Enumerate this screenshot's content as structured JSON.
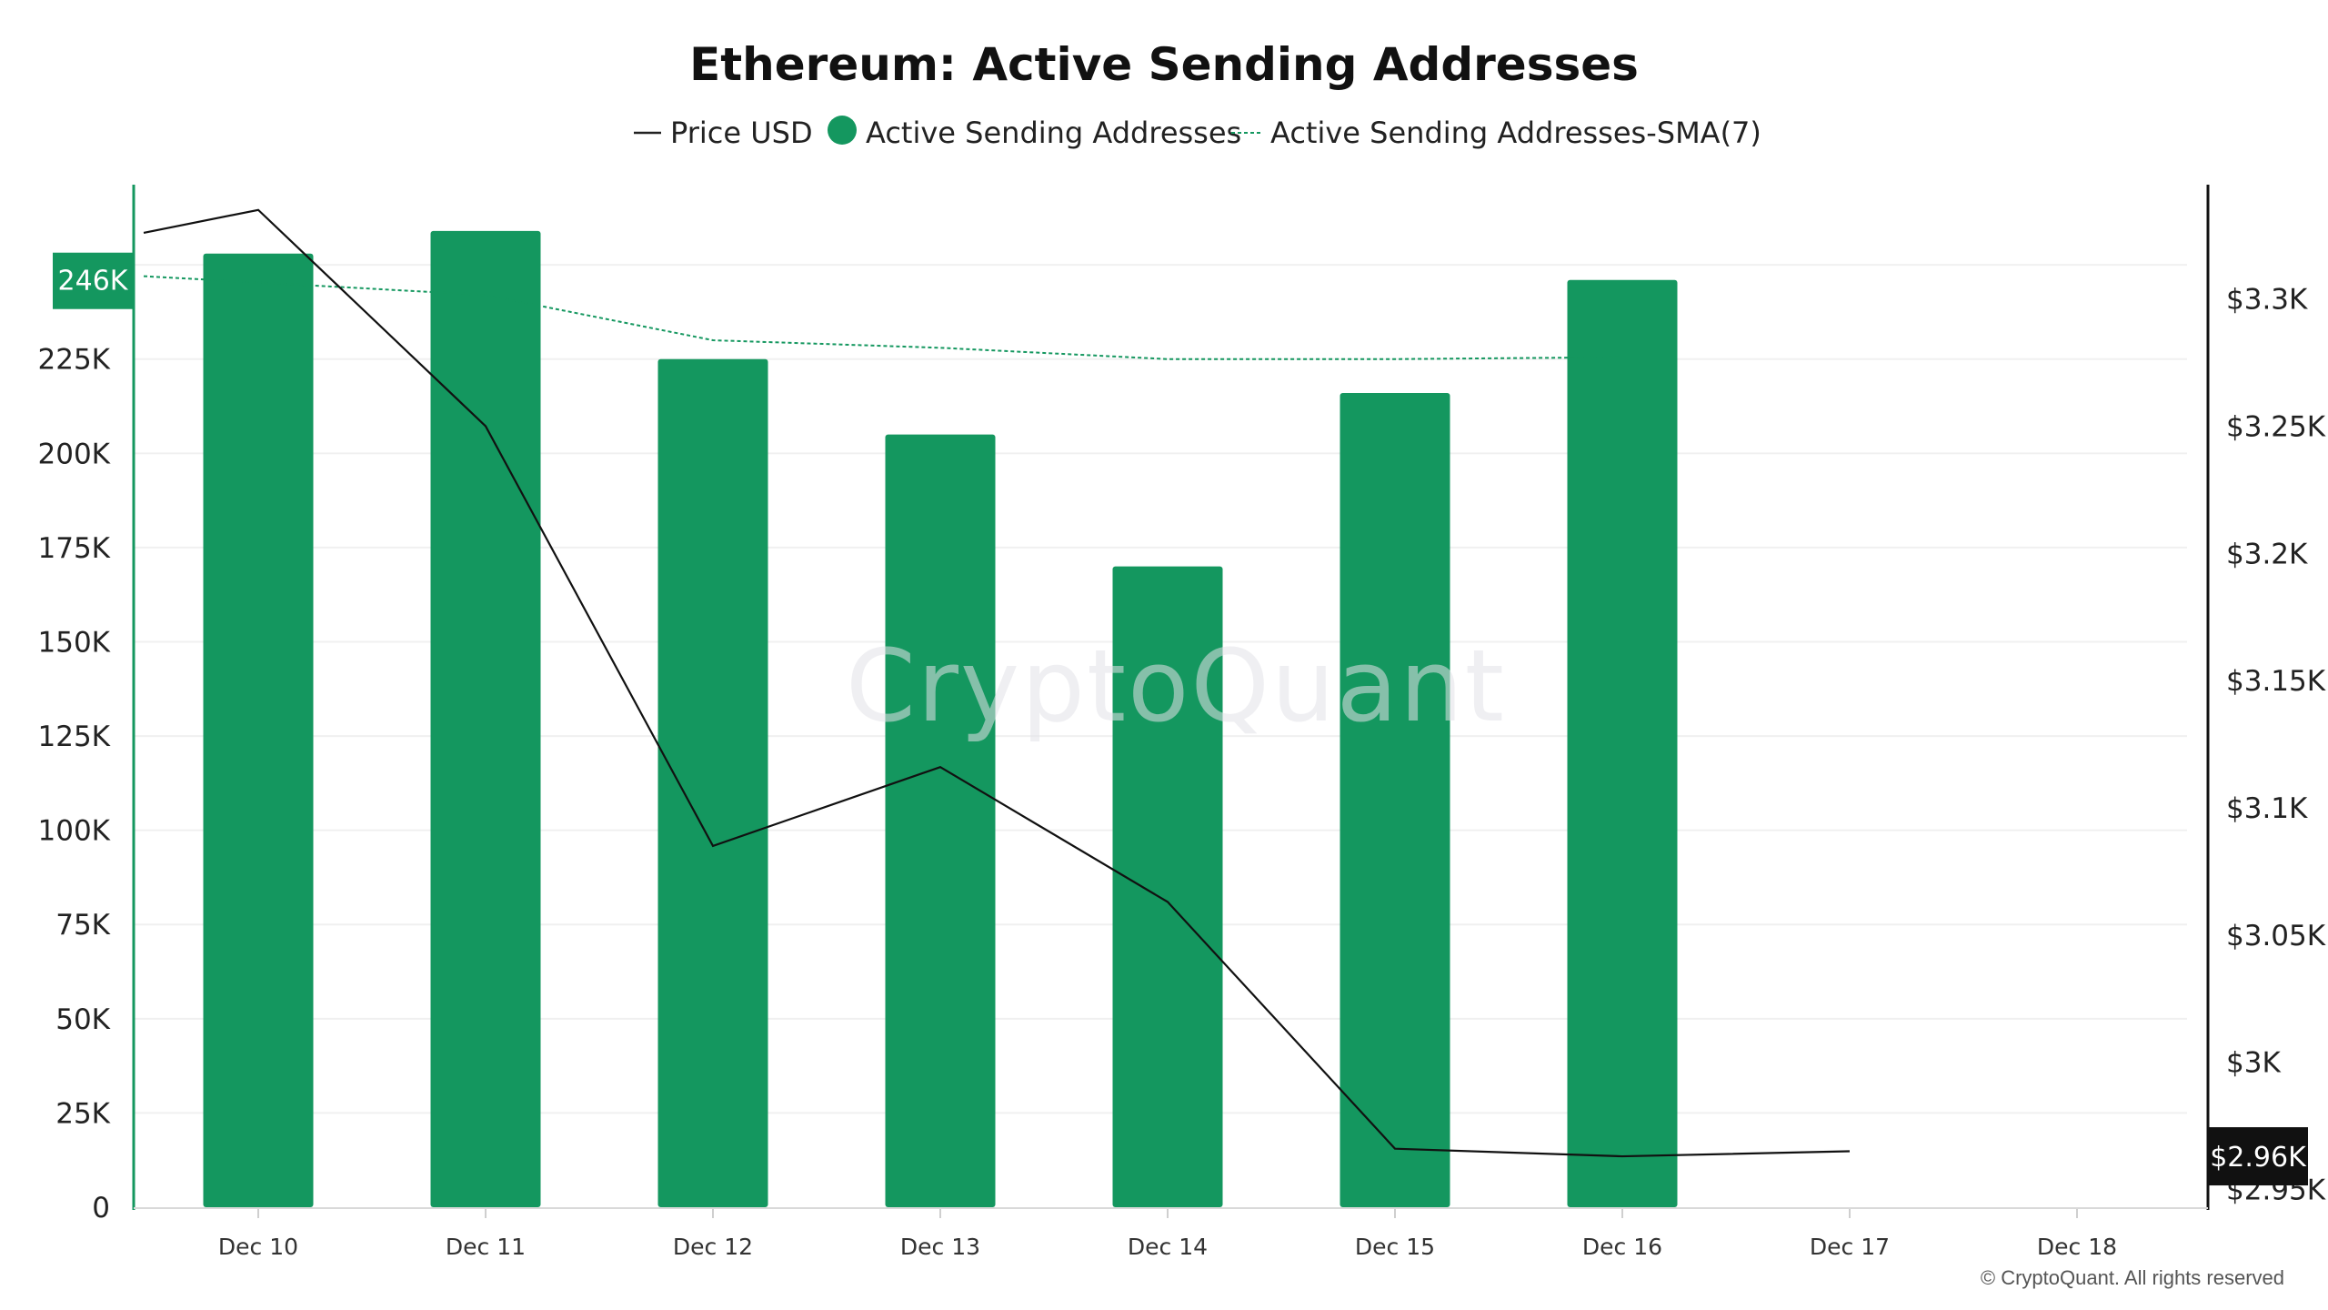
{
  "chart_data": {
    "type": "bar",
    "title": "Ethereum: Active Sending Addresses",
    "legend": {
      "placement": "top-center",
      "items": [
        {
          "label": "Price USD",
          "style": "line"
        },
        {
          "label": "Active Sending Addresses",
          "style": "dot"
        },
        {
          "label": "Active Sending Addresses-SMA(7)",
          "style": "dotted-line"
        }
      ]
    },
    "categories": [
      "Dec 10",
      "Dec 11",
      "Dec 12",
      "Dec 13",
      "Dec 14",
      "Dec 15",
      "Dec 16",
      "Dec 17",
      "Dec 18"
    ],
    "series": [
      {
        "name": "Active Sending Addresses",
        "type": "bar",
        "axis": "left",
        "color": "#14975f",
        "values": [
          253000,
          259000,
          225000,
          205000,
          170000,
          216000,
          246000,
          null,
          null
        ]
      },
      {
        "name": "Active Sending Addresses-SMA(7)",
        "type": "line",
        "style": "dotted",
        "axis": "left",
        "color": "#14975f",
        "values": [
          247000,
          242000,
          230000,
          228000,
          225000,
          225000,
          225500,
          null,
          null
        ]
      },
      {
        "name": "Price USD",
        "type": "line",
        "axis": "right",
        "color": "#111111",
        "values": [
          3335,
          3250,
          3085,
          3116,
          3063,
          2966,
          2963,
          2965,
          null
        ]
      }
    ],
    "left_axis": {
      "ticks": [
        "0",
        "25K",
        "50K",
        "75K",
        "100K",
        "125K",
        "150K",
        "175K",
        "200K",
        "225K"
      ],
      "tick_values": [
        0,
        25000,
        50000,
        75000,
        100000,
        125000,
        150000,
        175000,
        200000,
        225000
      ],
      "ylim": [
        0,
        272000
      ],
      "highlight_label": "246K",
      "highlight_value": 246000
    },
    "right_axis": {
      "ticks": [
        "$2.95K",
        "$3K",
        "$3.05K",
        "$3.1K",
        "$3.15K",
        "$3.2K",
        "$3.25K",
        "$3.3K"
      ],
      "tick_values": [
        2950,
        3000,
        3050,
        3100,
        3150,
        3200,
        3250,
        3300
      ],
      "ylim": [
        2943,
        3346
      ],
      "highlight_label": "$2.96K",
      "highlight_value": 2963
    },
    "grid": "horizontal",
    "colors": {
      "bar": "#14975f",
      "price_line": "#111111",
      "left_axis": "#14975f",
      "right_axis": "#111111",
      "grid": "#f0f0f0"
    }
  },
  "watermark": "CryptoQuant",
  "copyright": "© CryptoQuant. All rights reserved"
}
